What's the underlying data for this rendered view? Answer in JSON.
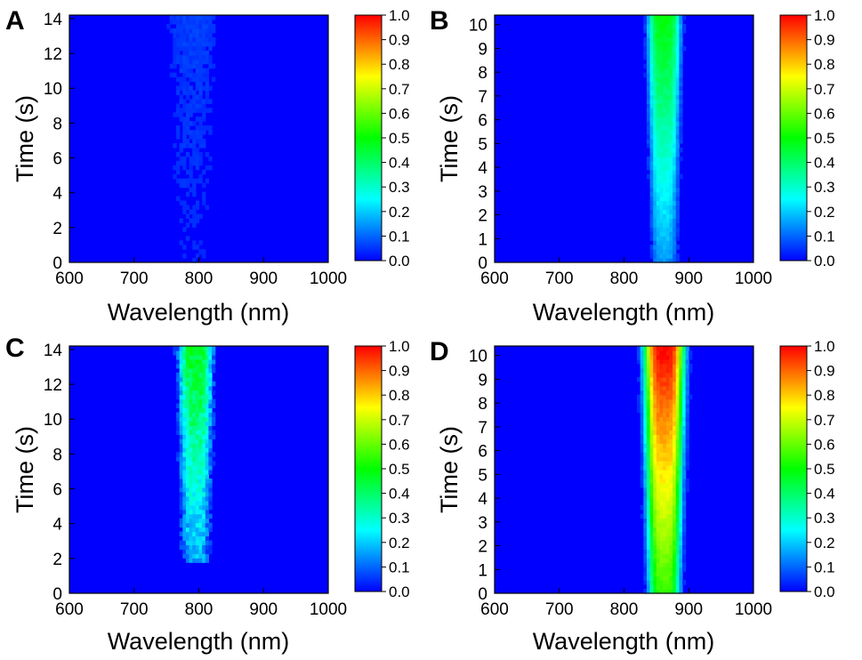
{
  "colorscale": [
    "#0000ff",
    "#00ffff",
    "#00ff00",
    "#ffff00",
    "#ff0000"
  ],
  "chart_data": [
    {
      "type": "heatmap",
      "panel": "A",
      "xlabel": "Wavelength (nm)",
      "ylabel": "Time (s)",
      "xlim": [
        600,
        1000
      ],
      "ylim": [
        0,
        14.2
      ],
      "x_ticks": [
        600,
        700,
        800,
        900,
        1000
      ],
      "y_ticks": [
        0,
        2,
        4,
        6,
        8,
        10,
        12,
        14
      ],
      "colorbar": {
        "min": 0.0,
        "max": 1.0,
        "ticks": [
          "0.0",
          "0.1",
          "0.2",
          "0.3",
          "0.4",
          "0.5",
          "0.6",
          "0.7",
          "0.8",
          "0.9",
          "1.0"
        ]
      },
      "band": {
        "center_nm": 790,
        "sigma_nm": 40,
        "intensity_start": 0.03,
        "intensity_end": 0.06,
        "onset_s": 0,
        "noise": 0.03
      }
    },
    {
      "type": "heatmap",
      "panel": "B",
      "xlabel": "Wavelength (nm)",
      "ylabel": "Time (s)",
      "xlim": [
        600,
        1000
      ],
      "ylim": [
        0,
        10.4
      ],
      "x_ticks": [
        600,
        700,
        800,
        900,
        1000
      ],
      "y_ticks": [
        0,
        1,
        2,
        3,
        4,
        5,
        6,
        7,
        8,
        9,
        10
      ],
      "colorbar": {
        "min": 0.0,
        "max": 1.0,
        "ticks": [
          "0.0",
          "0.1",
          "0.2",
          "0.3",
          "0.4",
          "0.5",
          "0.6",
          "0.7",
          "0.8",
          "0.9",
          "1.0"
        ]
      },
      "band": {
        "center_nm": 862,
        "sigma_nm": 24,
        "intensity_start": 0.15,
        "intensity_end": 0.5,
        "onset_s": 0,
        "noise": 0.04
      }
    },
    {
      "type": "heatmap",
      "panel": "C",
      "xlabel": "Wavelength (nm)",
      "ylabel": "Time (s)",
      "xlim": [
        600,
        1000
      ],
      "ylim": [
        0,
        14.2
      ],
      "x_ticks": [
        600,
        700,
        800,
        900,
        1000
      ],
      "y_ticks": [
        0,
        2,
        4,
        6,
        8,
        10,
        12,
        14
      ],
      "colorbar": {
        "min": 0.0,
        "max": 1.0,
        "ticks": [
          "0.0",
          "0.1",
          "0.2",
          "0.3",
          "0.4",
          "0.5",
          "0.6",
          "0.7",
          "0.8",
          "0.9",
          "1.0"
        ]
      },
      "band": {
        "center_nm": 795,
        "sigma_nm": 24,
        "intensity_start": 0.12,
        "intensity_end": 0.48,
        "onset_s": 1.8,
        "noise": 0.12
      }
    },
    {
      "type": "heatmap",
      "panel": "D",
      "xlabel": "Wavelength (nm)",
      "ylabel": "Time (s)",
      "xlim": [
        600,
        1000
      ],
      "ylim": [
        0,
        10.4
      ],
      "x_ticks": [
        600,
        700,
        800,
        900,
        1000
      ],
      "y_ticks": [
        0,
        1,
        2,
        3,
        4,
        5,
        6,
        7,
        8,
        9,
        10
      ],
      "colorbar": {
        "min": 0.0,
        "max": 1.0,
        "ticks": [
          "0.0",
          "0.1",
          "0.2",
          "0.3",
          "0.4",
          "0.5",
          "0.6",
          "0.7",
          "0.8",
          "0.9",
          "1.0"
        ]
      },
      "band": {
        "center_nm": 862,
        "sigma_nm": 30,
        "intensity_start": 0.55,
        "intensity_end": 1.0,
        "onset_s": 0,
        "noise": 0.04
      }
    }
  ]
}
